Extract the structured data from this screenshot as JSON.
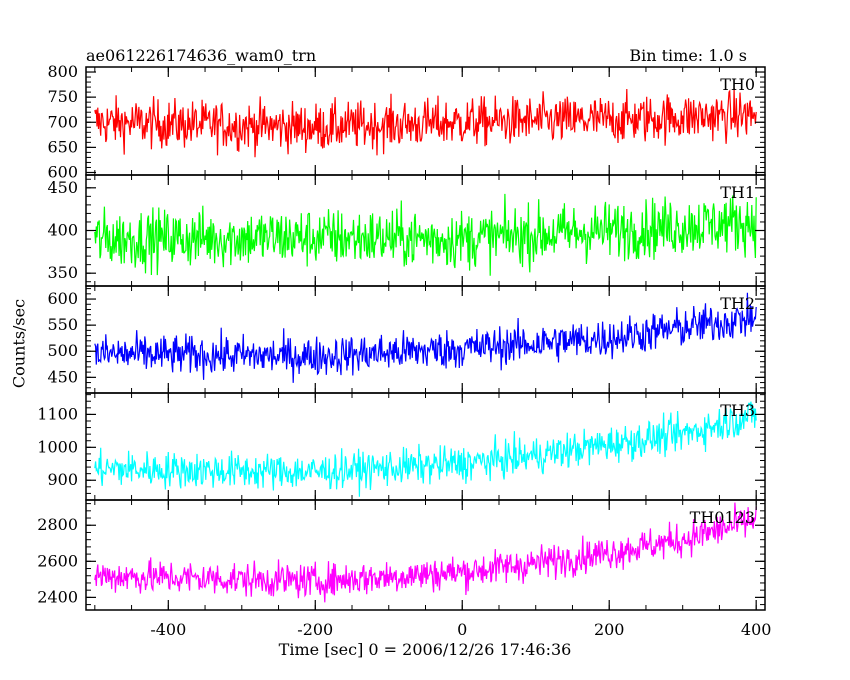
{
  "header": {
    "title": "ae061226174636_wam0_trn",
    "bin_time": "Bin time: 1.0 s"
  },
  "axes": {
    "ylabel": "Counts/sec",
    "xlabel": "Time [sec] 0 = 2006/12/26 17:46:36"
  },
  "colors": {
    "TH0": "#ff0000",
    "TH1": "#00ff00",
    "TH2": "#0000ff",
    "TH3": "#00ffff",
    "TH0123": "#ff00ff"
  },
  "chart_data": [
    {
      "type": "line",
      "name": "TH0",
      "xlim": [
        -512,
        412
      ],
      "ylim": [
        595,
        810
      ],
      "yticks": [
        600,
        650,
        700,
        750,
        800
      ],
      "series": [
        {
          "name": "TH0",
          "x_range": [
            -500,
            400
          ],
          "trend": [
            [
              -500,
              700
            ],
            [
              -200,
              690
            ],
            [
              0,
              700
            ],
            [
              200,
              705
            ],
            [
              400,
              715
            ]
          ],
          "noise_amplitude": 28,
          "color": "#ff0000"
        }
      ]
    },
    {
      "type": "line",
      "name": "TH1",
      "xlim": [
        -512,
        412
      ],
      "ylim": [
        335,
        465
      ],
      "yticks": [
        350,
        400,
        450
      ],
      "series": [
        {
          "name": "TH1",
          "x_range": [
            -500,
            400
          ],
          "trend": [
            [
              -500,
              390
            ],
            [
              -200,
              392
            ],
            [
              0,
              390
            ],
            [
              200,
              400
            ],
            [
              400,
              410
            ]
          ],
          "noise_amplitude": 20,
          "color": "#00ff00"
        }
      ]
    },
    {
      "type": "line",
      "name": "TH2",
      "xlim": [
        -512,
        412
      ],
      "ylim": [
        420,
        625
      ],
      "yticks": [
        450,
        500,
        550,
        600
      ],
      "series": [
        {
          "name": "TH2",
          "x_range": [
            -500,
            400
          ],
          "trend": [
            [
              -500,
              495
            ],
            [
              -200,
              490
            ],
            [
              0,
              505
            ],
            [
              200,
              525
            ],
            [
              300,
              545
            ],
            [
              400,
              565
            ]
          ],
          "noise_amplitude": 22,
          "color": "#0000ff"
        }
      ]
    },
    {
      "type": "line",
      "name": "TH3",
      "xlim": [
        -512,
        412
      ],
      "ylim": [
        840,
        1165
      ],
      "yticks": [
        900,
        1000,
        1100
      ],
      "series": [
        {
          "name": "TH3",
          "x_range": [
            -500,
            400
          ],
          "trend": [
            [
              -500,
              935
            ],
            [
              -200,
              925
            ],
            [
              0,
              950
            ],
            [
              100,
              975
            ],
            [
              200,
              1010
            ],
            [
              300,
              1040
            ],
            [
              400,
              1100
            ]
          ],
          "noise_amplitude": 32,
          "color": "#00ffff"
        }
      ]
    },
    {
      "type": "line",
      "name": "TH0123",
      "xlim": [
        -512,
        412
      ],
      "ylim": [
        2330,
        2940
      ],
      "yticks": [
        2400,
        2600,
        2800
      ],
      "xticks": [
        -400,
        -200,
        0,
        200,
        400
      ],
      "series": [
        {
          "name": "TH0123",
          "x_range": [
            -500,
            400
          ],
          "trend": [
            [
              -500,
              2520
            ],
            [
              -200,
              2490
            ],
            [
              0,
              2540
            ],
            [
              100,
              2590
            ],
            [
              200,
              2650
            ],
            [
              300,
              2720
            ],
            [
              400,
              2830
            ]
          ],
          "noise_amplitude": 55,
          "color": "#ff00ff"
        }
      ]
    }
  ]
}
